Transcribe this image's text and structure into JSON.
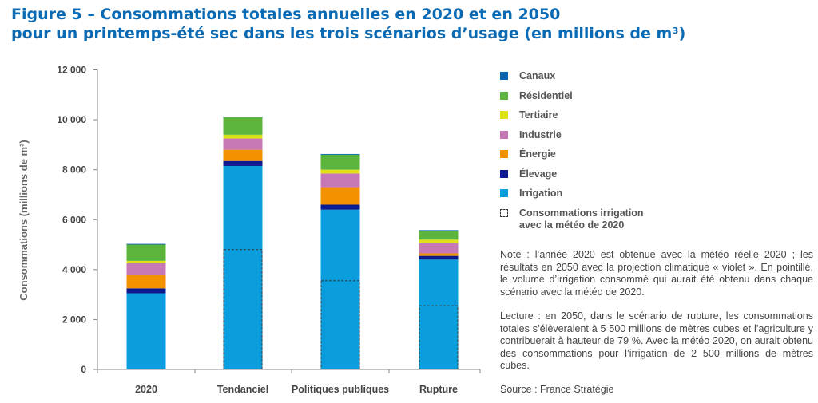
{
  "title": {
    "line1": "Figure 5 – Consommations totales annuelles en 2020 et en 2050",
    "line2": "pour un printemps-été sec dans les trois scénarios d’usage (en millions de m³)"
  },
  "chart_data": {
    "type": "bar",
    "stacked": true,
    "categories": [
      "2020",
      "Tendanciel",
      "Politiques publiques",
      "Rupture"
    ],
    "ylabel": "Consommations (millions de m³)",
    "ylim": [
      0,
      12000
    ],
    "yticks": [
      0,
      2000,
      4000,
      6000,
      8000,
      10000,
      12000
    ],
    "ytick_labels": [
      "0",
      "2 000",
      "4 000",
      "6 000",
      "8 000",
      "10 000",
      "12 000"
    ],
    "series": [
      {
        "name": "Irrigation",
        "color": "#0a9ede",
        "values": [
          3050,
          8150,
          6400,
          4400
        ]
      },
      {
        "name": "Élevage",
        "color": "#0b1a8c",
        "values": [
          200,
          200,
          200,
          150
        ]
      },
      {
        "name": "Énergie",
        "color": "#f39200",
        "values": [
          550,
          450,
          700,
          100
        ]
      },
      {
        "name": "Industrie",
        "color": "#c678b4",
        "values": [
          450,
          450,
          550,
          400
        ]
      },
      {
        "name": "Tertiaire",
        "color": "#dfe018",
        "values": [
          100,
          150,
          150,
          150
        ]
      },
      {
        "name": "Résidentiel",
        "color": "#5db43c",
        "values": [
          650,
          700,
          600,
          350
        ]
      },
      {
        "name": "Canaux",
        "color": "#0a63ad",
        "values": [
          30,
          30,
          30,
          30
        ]
      }
    ],
    "dashed_series": {
      "name": "Consommations irrigation avec la météo de 2020",
      "values": [
        null,
        4800,
        3550,
        2550
      ]
    },
    "grid": false,
    "legend_position": "right"
  },
  "legend": [
    {
      "label": "Canaux",
      "color": "#0a63ad"
    },
    {
      "label": "Résidentiel",
      "color": "#5db43c"
    },
    {
      "label": "Tertiaire",
      "color": "#dfe018"
    },
    {
      "label": "Industrie",
      "color": "#c678b4"
    },
    {
      "label": "Énergie",
      "color": "#f39200"
    },
    {
      "label": "Élevage",
      "color": "#0b1a8c"
    },
    {
      "label": "Irrigation",
      "color": "#0a9ede"
    },
    {
      "label_line1": "Consommations irrigation",
      "label_line2": "avec la météo de 2020"
    }
  ],
  "note": "Note : l’année 2020 est obtenue avec la météo réelle 2020 ; les résultats en 2050 avec la projection climatique « violet ». En pointillé, le volume d’irrigation consommé qui aurait été obtenu dans chaque scénario avec la météo de 2020.",
  "lecture": "Lecture : en 2050, dans le scénario de rupture, les consommations totales s’élèveraient à 5 500 millions de mètres cubes et l’agriculture y contribuerait à hauteur de 79 %. Avec la météo 2020, on aurait obtenu des consommations pour l’irrigation de 2 500 millions de mètres cubes.",
  "source": "Source : France Stratégie"
}
